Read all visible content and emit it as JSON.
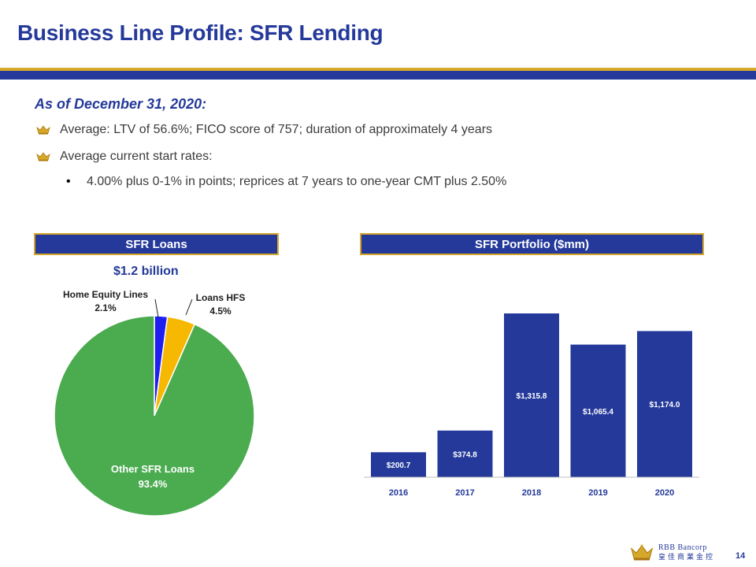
{
  "slide": {
    "title": "Business Line Profile:  SFR Lending",
    "as_of": "As of December  31, 2020:",
    "bullets": [
      "Average: LTV of 56.6%; FICO score of 757; duration of approximately 4 years",
      "Average current start rates:"
    ],
    "sub_bullet_marker": "•",
    "sub_bullets": [
      "4.00% plus 0-1% in points; reprices at 7 years to one-year CMT plus 2.50%"
    ],
    "page_number": "14"
  },
  "logo": {
    "name_en": "RBB Bancorp",
    "name_zh": "皇佳商業金控"
  },
  "colors": {
    "navy": "#24399a",
    "gold": "#d5a82c",
    "green": "#4aab4f",
    "blue": "#1f1ff0",
    "amber": "#f6b800"
  },
  "chart_data": [
    {
      "type": "pie",
      "title": "SFR Loans",
      "subtitle": "$1.2 billion",
      "slices": [
        {
          "label": "Home Equity Lines",
          "value": 2.1,
          "value_label": "2.1%",
          "color": "#1f1ff0"
        },
        {
          "label": "Loans HFS",
          "value": 4.5,
          "value_label": "4.5%",
          "color": "#f6b800"
        },
        {
          "label": "Other SFR Loans",
          "value": 93.4,
          "value_label": "93.4%",
          "color": "#4aab4f"
        }
      ]
    },
    {
      "type": "bar",
      "title": "SFR Portfolio ($mm)",
      "categories": [
        "2016",
        "2017",
        "2018",
        "2019",
        "2020"
      ],
      "values": [
        200.7,
        374.8,
        1315.8,
        1065.4,
        1174.0
      ],
      "value_labels": [
        "$200.7",
        "$374.8",
        "$1,315.8",
        "$1,065.4",
        "$1,174.0"
      ],
      "ylim": [
        0,
        1315.8
      ],
      "xlabel": "",
      "ylabel": ""
    }
  ]
}
